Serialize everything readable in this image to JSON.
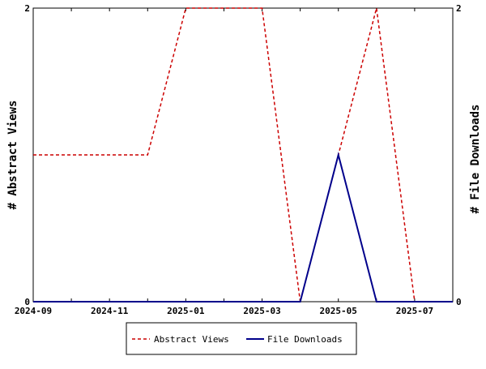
{
  "chart_data": {
    "type": "line",
    "x": [
      "2024-09",
      "2024-10",
      "2024-11",
      "2024-12",
      "2025-01",
      "2025-02",
      "2025-03",
      "2025-04",
      "2025-05",
      "2025-06",
      "2025-07",
      "2025-08"
    ],
    "x_ticks": [
      "2024-09",
      "2024-11",
      "2025-01",
      "2025-03",
      "2025-05",
      "2025-07"
    ],
    "series": [
      {
        "name": "Abstract Views",
        "axis": "left",
        "color": "#cc0000",
        "dash": "dashed",
        "values": [
          1,
          1,
          1,
          1,
          2,
          2,
          2,
          0,
          1,
          2,
          0,
          0
        ]
      },
      {
        "name": "File Downloads",
        "axis": "right",
        "color": "#00008b",
        "dash": "solid",
        "values": [
          0,
          0,
          0,
          0,
          0,
          0,
          0,
          0,
          1,
          0,
          0,
          0
        ]
      }
    ],
    "ylabel_left": "# Abstract Views",
    "ylabel_right": "# File Downloads",
    "ylim_left": [
      0,
      2
    ],
    "ylim_right": [
      0,
      2
    ],
    "y_ticks_left": [
      "0",
      "2"
    ],
    "y_ticks_right": [
      "0",
      "2"
    ],
    "grid": false,
    "legend_position": "bottom"
  }
}
